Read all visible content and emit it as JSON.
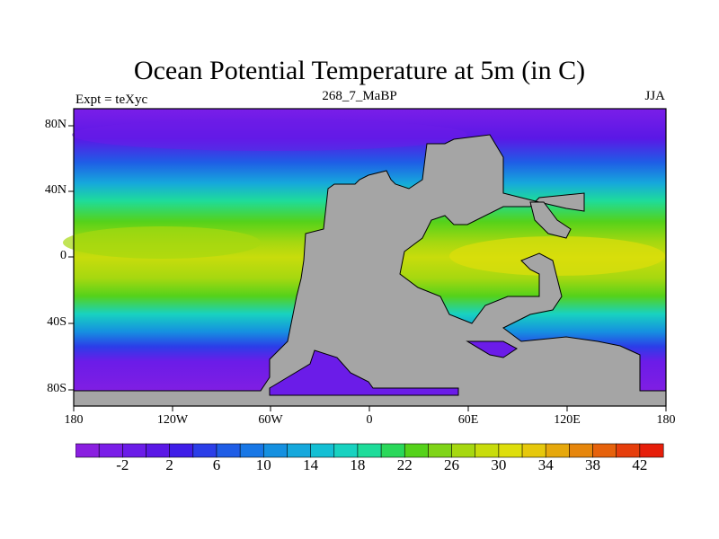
{
  "header": {
    "title": "Ocean Potential Temperature at 5m (in C)",
    "left_note": "Expt = teXyc",
    "center_note": "268_7_MaBP",
    "right_note": "JJA"
  },
  "axes": {
    "x_ticks": [
      "180",
      "120W",
      "60W",
      "0",
      "60E",
      "120E",
      "180"
    ],
    "y_ticks": [
      "80N",
      "40N",
      "0",
      "40S",
      "80S"
    ]
  },
  "colorbar": {
    "colors": [
      "#8a1fe0",
      "#7a1ee8",
      "#6b1ce8",
      "#5a18e6",
      "#3f1ee8",
      "#2b3ee8",
      "#1f5de6",
      "#1877e6",
      "#1590e0",
      "#16a8dc",
      "#14bfd4",
      "#18d2c0",
      "#1edc9a",
      "#2ad85a",
      "#55d21a",
      "#7fd418",
      "#a6d810",
      "#c8dc0c",
      "#dede0c",
      "#e6c80c",
      "#e6a80c",
      "#e6860c",
      "#e6620c",
      "#e63e0c",
      "#e61e0a"
    ],
    "labels": [
      "-2",
      "2",
      "6",
      "10",
      "14",
      "18",
      "22",
      "26",
      "30",
      "34",
      "38",
      "42"
    ]
  },
  "chart_data": {
    "type": "heatmap",
    "title": "Ocean Potential Temperature at 5m (in C)",
    "x_range": [
      -180,
      180
    ],
    "y_range": [
      -90,
      90
    ],
    "units": "C",
    "value_range": [
      -4,
      44
    ],
    "land_color": "#a5a5a5"
  }
}
